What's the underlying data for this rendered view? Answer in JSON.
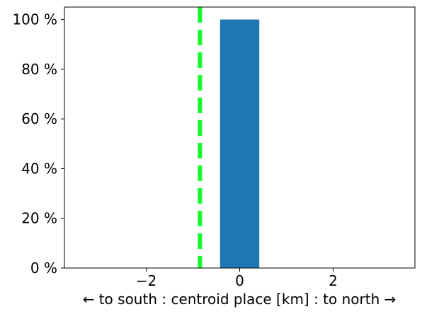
{
  "chart_data": {
    "type": "bar",
    "xlabel": "← to south : centroid place [km] : to north →",
    "ylabel": "",
    "title": "",
    "xlim": [
      -3.75,
      3.75
    ],
    "ylim": [
      0,
      105
    ],
    "x_ticks": [
      -2,
      0,
      2
    ],
    "y_ticks": [
      0,
      20,
      40,
      60,
      80,
      100
    ],
    "y_tick_suffix": " %",
    "bars": [
      {
        "x_left": -0.42,
        "x_right": 0.42,
        "value": 100
      }
    ],
    "reference_line": {
      "x": -0.85,
      "style": "dashed"
    },
    "grid": false,
    "colors": {
      "bar": "#1f77b4",
      "reference_line": "#14ff2a",
      "axes": "#000000"
    }
  }
}
